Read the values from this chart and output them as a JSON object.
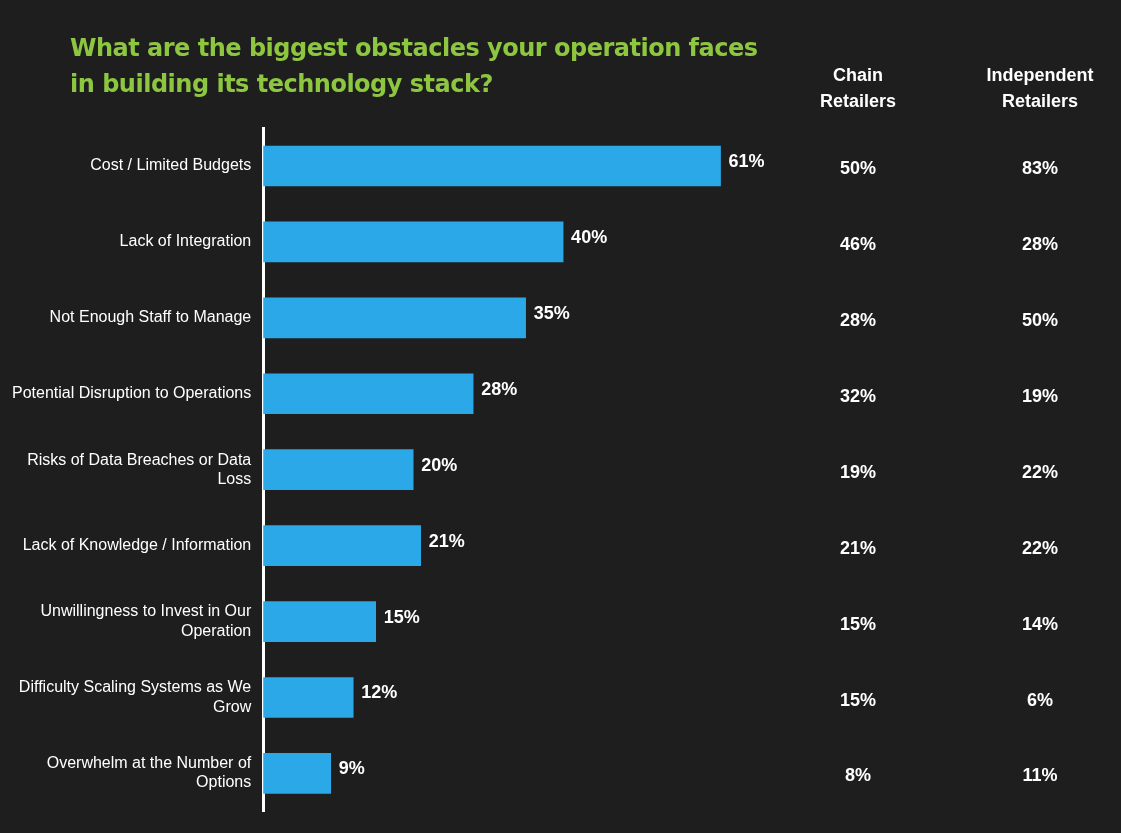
{
  "chart_data": [
    {
      "type": "bar",
      "orientation": "horizontal",
      "title": "What are the biggest obstacles your operation faces in building its technology stack?",
      "categories": [
        "Cost / Limited Budgets",
        "Lack of Integration",
        "Not Enough Staff to Manage",
        "Potential Disruption to Operations",
        "Risks of Data Breaches or Data Loss",
        "Lack of Knowledge / Information",
        "Unwillingness to Invest in Our Operation",
        "Difficulty Scaling Systems as We Grow",
        "Overwhelm at the Number of Options"
      ],
      "series": [
        {
          "color": "#2aa8e8",
          "values": [
            61,
            40,
            35,
            28,
            20,
            21,
            15,
            12,
            9
          ],
          "value_labels": [
            "61%",
            "40%",
            "35%",
            "28%",
            "20%",
            "21%",
            "15%",
            "12%",
            "9%"
          ]
        }
      ],
      "legend": false
    },
    {
      "type": "heatmap",
      "categories": [
        "Chain Retailers",
        "Independent Retailers"
      ],
      "y_categories": [
        null,
        null,
        null,
        null,
        null,
        null,
        null,
        null,
        null
      ],
      "cells": [
        [
          50,
          83
        ],
        [
          46,
          28
        ],
        [
          28,
          50
        ],
        [
          32,
          19
        ],
        [
          19,
          22
        ],
        [
          21,
          22
        ],
        [
          15,
          14
        ],
        [
          15,
          6
        ],
        [
          8,
          11
        ]
      ],
      "cell_labels": [
        [
          "50%",
          "83%"
        ],
        [
          "46%",
          "28%"
        ],
        [
          "28%",
          "50%"
        ],
        [
          "32%",
          "19%"
        ],
        [
          "19%",
          "22%"
        ],
        [
          "21%",
          "22%"
        ],
        [
          "15%",
          "14%"
        ],
        [
          "15%",
          "6%"
        ],
        [
          "8%",
          "11%"
        ]
      ]
    }
  ]
}
